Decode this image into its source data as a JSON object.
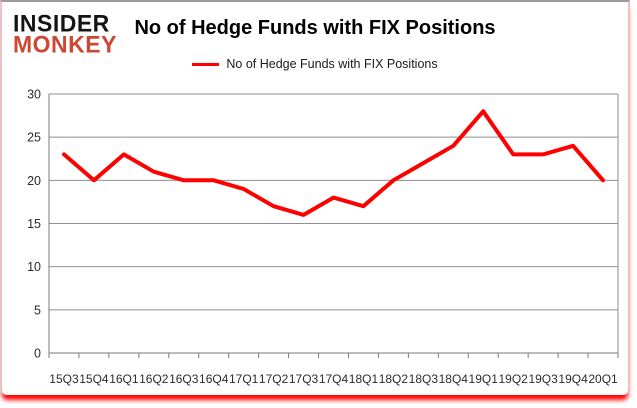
{
  "logo": {
    "line1": "INSIDER",
    "line2": "MONKEY"
  },
  "title": "No of Hedge Funds with FIX Positions",
  "legend": {
    "label": "No of Hedge Funds with FIX Positions"
  },
  "colors": {
    "series_line": "#ff0000",
    "logo_red": "#cd4733",
    "logo_black": "#141414",
    "grid": "#8f8f8f",
    "axis": "#7a7a7a",
    "tick_label": "#2b2b2b",
    "bottom_glow": "#ff0000",
    "frame_side": "#eec1c1",
    "frame_top": "#9b9b9b"
  },
  "chart_data": {
    "type": "line",
    "title": "No of Hedge Funds with FIX Positions",
    "series_name": "No of Hedge Funds with FIX Positions",
    "categories": [
      "15Q3",
      "15Q4",
      "16Q1",
      "16Q2",
      "16Q3",
      "16Q4",
      "17Q1",
      "17Q2",
      "17Q3",
      "17Q4",
      "18Q1",
      "18Q2",
      "18Q3",
      "18Q4",
      "19Q1",
      "19Q2",
      "19Q3",
      "19Q4",
      "20Q1"
    ],
    "values": [
      23,
      20,
      23,
      21,
      20,
      20,
      19,
      17,
      16,
      18,
      17,
      20,
      22,
      24,
      28,
      23,
      23,
      24,
      20
    ],
    "xlabel": "",
    "ylabel": "",
    "ylim": [
      0,
      30
    ],
    "yticks": [
      0,
      5,
      10,
      15,
      20,
      25,
      30
    ],
    "grid": true,
    "legend_position": "top-center",
    "line_color": "#ff0000"
  }
}
